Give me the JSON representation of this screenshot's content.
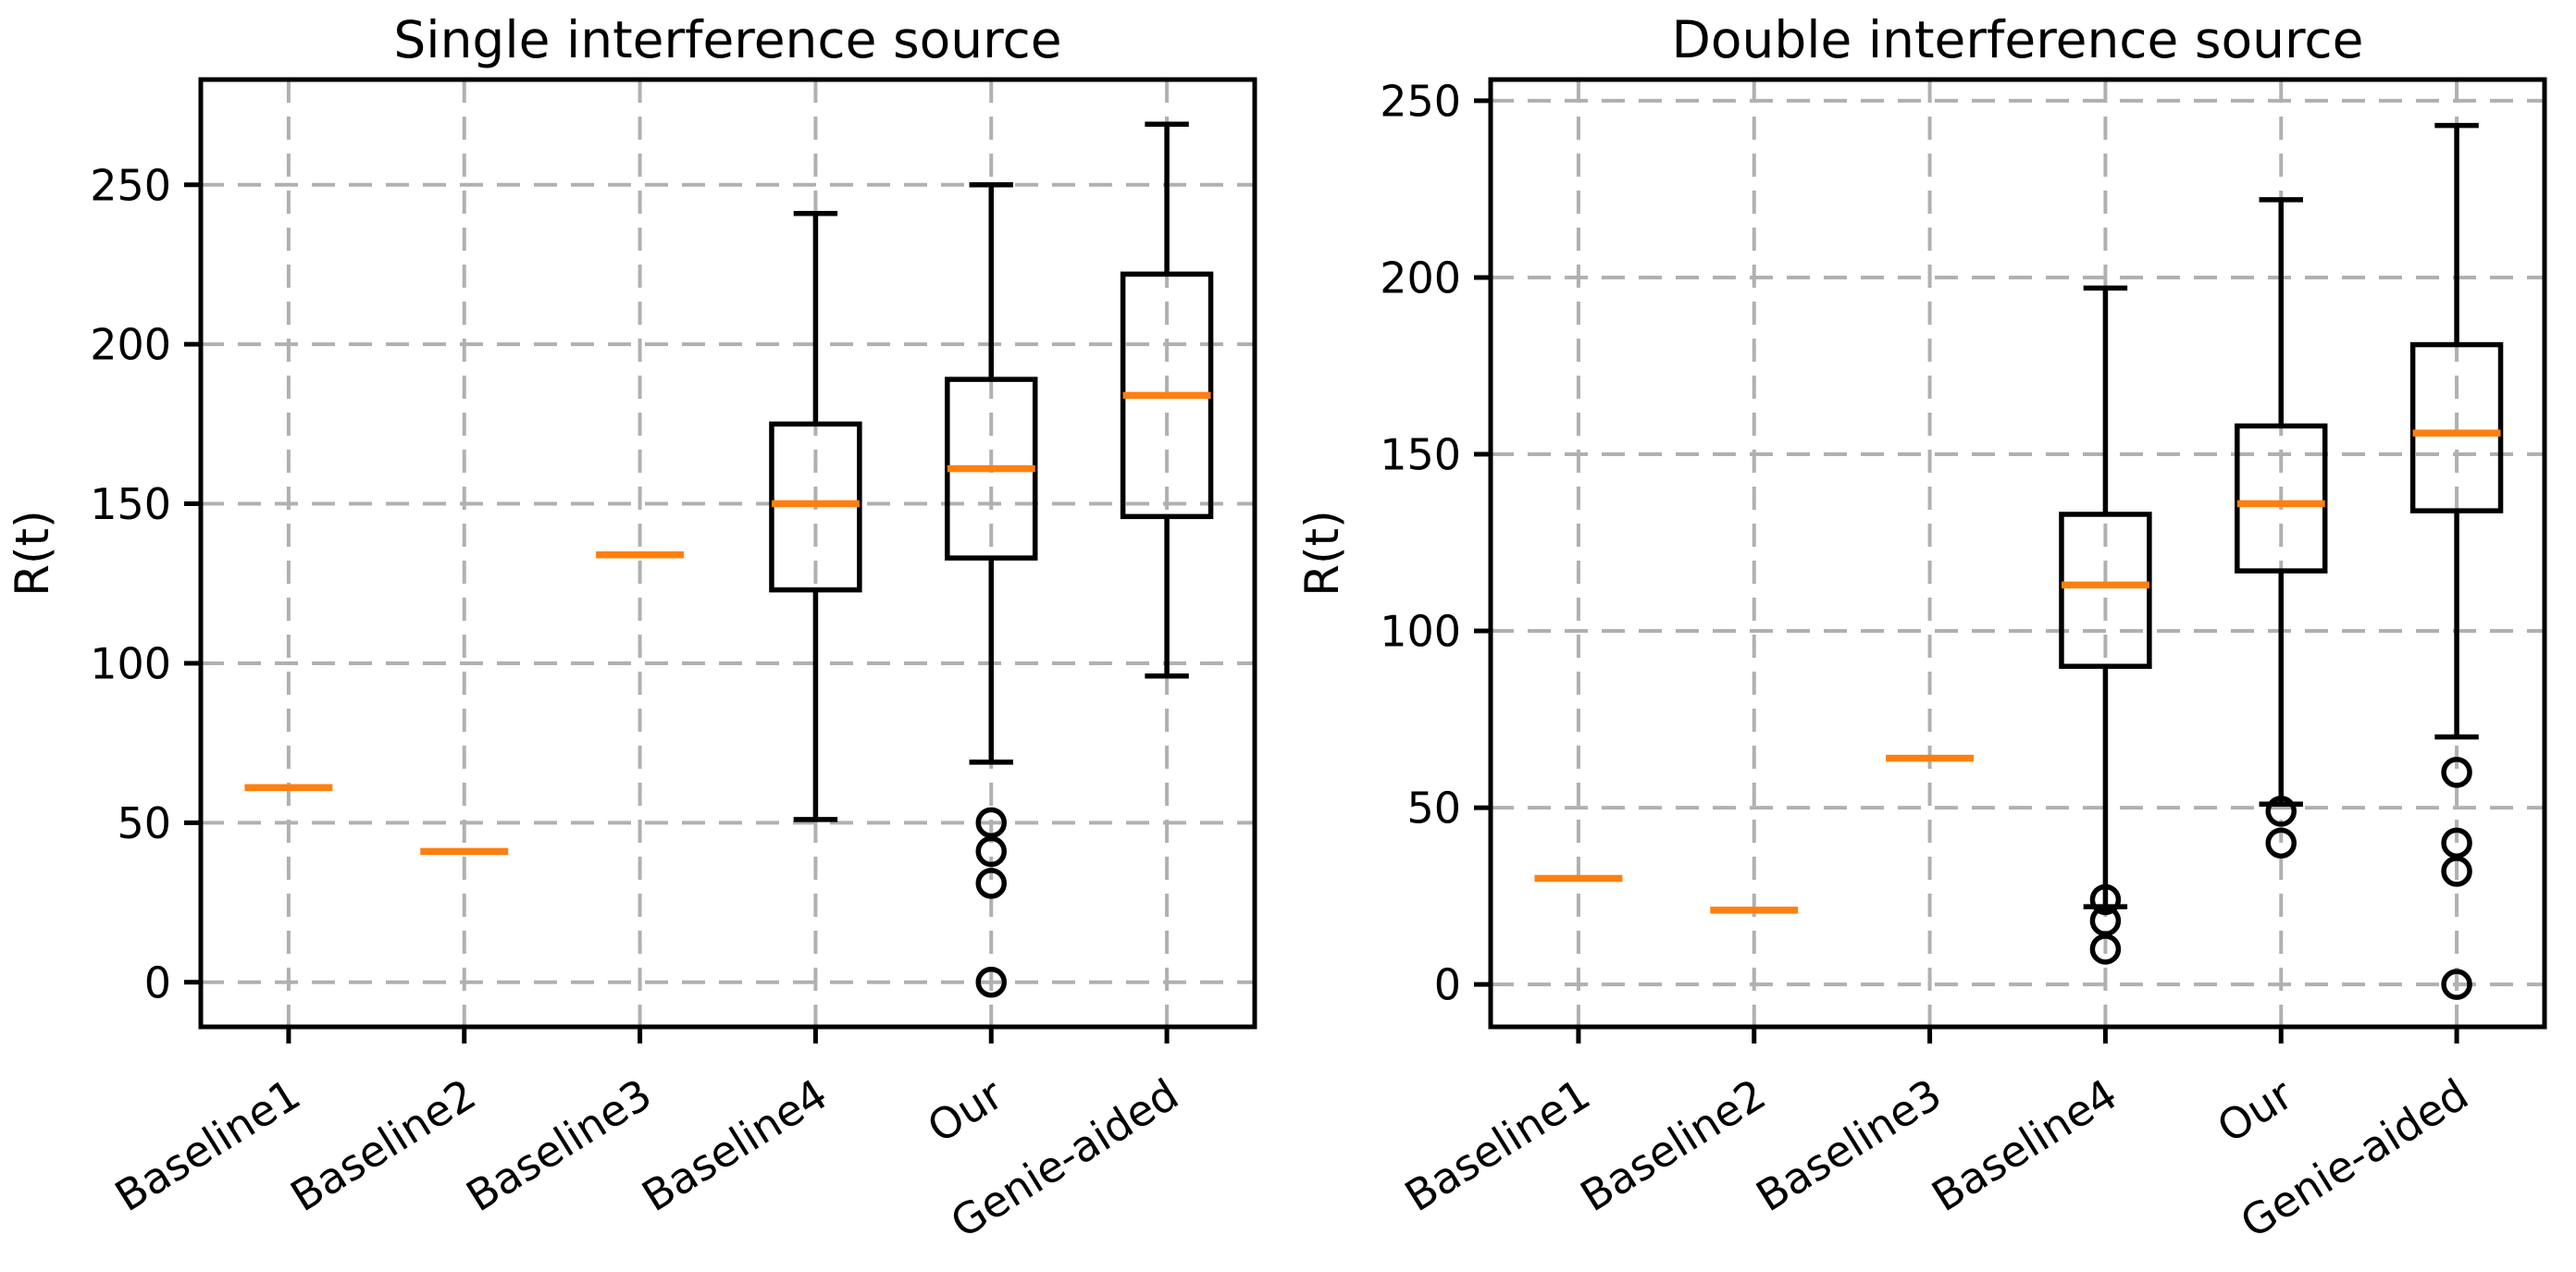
{
  "figure": {
    "background": "#ffffff",
    "description": "Two side-by-side box plots comparing R(t) of six methods under single and double interference sources"
  },
  "colors": {
    "median": "#ff7f0e",
    "box_line": "#000000",
    "grid": "#b0b0b0",
    "text": "#000000",
    "spine": "#000000"
  },
  "chart_data": [
    {
      "type": "box",
      "title": "Single interference source",
      "ylabel": "R(t)",
      "xlabel": "",
      "categories": [
        "Baseline1",
        "Baseline2",
        "Baseline3",
        "Baseline4",
        "Our",
        "Genie-aided"
      ],
      "yticks": [
        0,
        50,
        100,
        150,
        200,
        250
      ],
      "ylim": [
        -14,
        283
      ],
      "grid": "dashed both axes",
      "legend": "none",
      "boxes": [
        {
          "category": "Baseline1",
          "median_only": true,
          "med": 61
        },
        {
          "category": "Baseline2",
          "median_only": true,
          "med": 41
        },
        {
          "category": "Baseline3",
          "median_only": true,
          "med": 134
        },
        {
          "category": "Baseline4",
          "median_only": false,
          "whislo": 51,
          "q1": 123,
          "med": 150,
          "q3": 175,
          "whishi": 241,
          "fliers": []
        },
        {
          "category": "Our",
          "median_only": false,
          "whislo": 69,
          "q1": 133,
          "med": 161,
          "q3": 189,
          "whishi": 250,
          "fliers": [
            50,
            41,
            31,
            0
          ]
        },
        {
          "category": "Genie-aided",
          "median_only": false,
          "whislo": 96,
          "q1": 146,
          "med": 184,
          "q3": 222,
          "whishi": 269,
          "fliers": []
        }
      ]
    },
    {
      "type": "box",
      "title": "Double interference source",
      "ylabel": "R(t)",
      "xlabel": "",
      "categories": [
        "Baseline1",
        "Baseline2",
        "Baseline3",
        "Baseline4",
        "Our",
        "Genie-aided"
      ],
      "yticks": [
        0,
        50,
        100,
        150,
        200,
        250
      ],
      "ylim": [
        -12,
        256
      ],
      "grid": "dashed both axes",
      "legend": "none",
      "boxes": [
        {
          "category": "Baseline1",
          "median_only": true,
          "med": 30
        },
        {
          "category": "Baseline2",
          "median_only": true,
          "med": 21
        },
        {
          "category": "Baseline3",
          "median_only": true,
          "med": 64
        },
        {
          "category": "Baseline4",
          "median_only": false,
          "whislo": 22,
          "q1": 90,
          "med": 113,
          "q3": 133,
          "whishi": 197,
          "fliers": [
            24,
            18,
            10
          ]
        },
        {
          "category": "Our",
          "median_only": false,
          "whislo": 51,
          "q1": 117,
          "med": 136,
          "q3": 158,
          "whishi": 222,
          "fliers": [
            49,
            40
          ]
        },
        {
          "category": "Genie-aided",
          "median_only": false,
          "whislo": 70,
          "q1": 134,
          "med": 156,
          "q3": 181,
          "whishi": 243,
          "fliers": [
            60,
            40,
            32,
            0
          ]
        }
      ]
    }
  ]
}
